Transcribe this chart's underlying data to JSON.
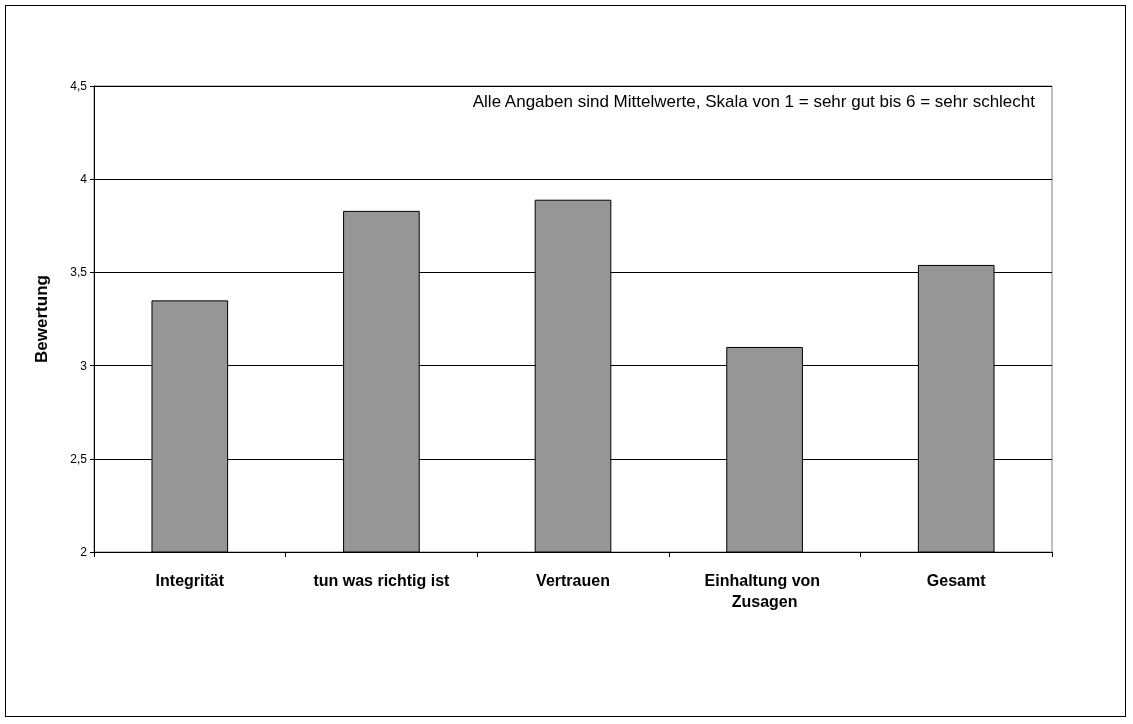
{
  "chart_data": {
    "type": "bar",
    "categories": [
      "Integrität",
      "tun was richtig ist",
      "Vertrauen",
      "Einhaltung von Zusagen",
      "Gesamt"
    ],
    "values": [
      3.35,
      3.83,
      3.89,
      3.1,
      3.54
    ],
    "color": "#969696",
    "ylabel": "Bewertung",
    "ylim": [
      2,
      4.5
    ],
    "yticks": [
      2,
      {
        "value": 2.5,
        "label": "2,5"
      },
      3,
      {
        "value": 3.5,
        "label": "3,5"
      },
      4,
      {
        "value": 4.5,
        "label": "4,5"
      }
    ],
    "grid": "y",
    "annotations": [
      "Alle Angaben sind Mittelwerte, Skala von 1 = sehr gut bis 6 = sehr schlecht"
    ]
  }
}
